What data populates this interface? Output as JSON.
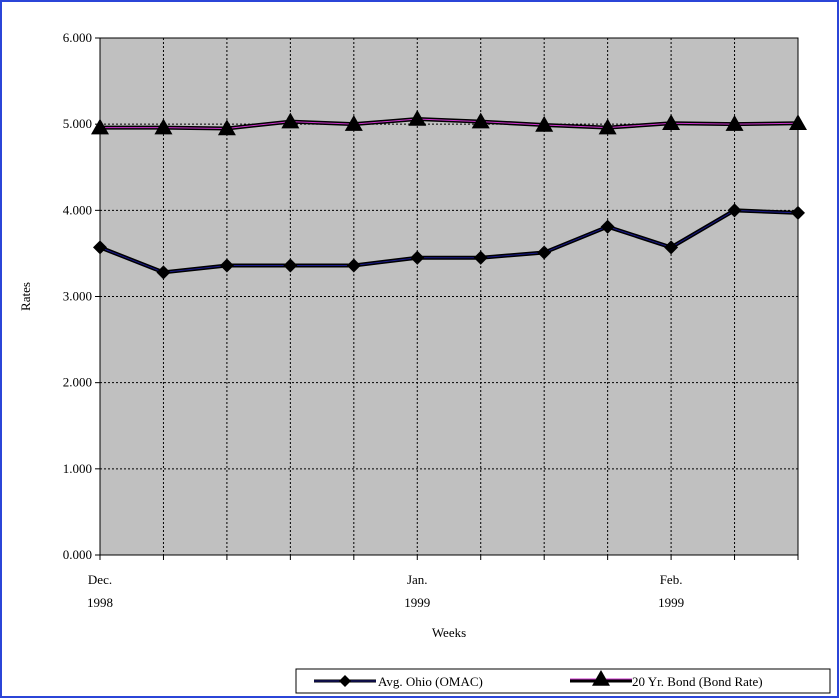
{
  "chart_data": {
    "type": "line",
    "title": "",
    "xlabel": "Weeks",
    "ylabel": "Rates",
    "ylim": [
      0,
      6
    ],
    "yticks": [
      "0.000",
      "1.000",
      "2.000",
      "3.000",
      "4.000",
      "5.000",
      "6.000"
    ],
    "grid": true,
    "legend": "bottom-right",
    "x_tick_labels": [
      {
        "index": 0,
        "line1": "Dec.",
        "line2": "1998"
      },
      {
        "index": 5,
        "line1": "Jan.",
        "line2": "1999"
      },
      {
        "index": 9,
        "line1": "Feb.",
        "line2": "1999"
      }
    ],
    "series": [
      {
        "name": "Avg. Ohio (OMAC)",
        "marker": "diamond",
        "line_color": "#1a1a8c",
        "values": [
          3.57,
          3.28,
          3.36,
          3.36,
          3.36,
          3.45,
          3.45,
          3.51,
          3.81,
          3.57,
          4.0,
          3.97
        ]
      },
      {
        "name": "20 Yr. Bond (Bond Rate)",
        "marker": "triangle",
        "line_color": "#cc33cc",
        "values": [
          4.96,
          4.96,
          4.95,
          5.03,
          5.0,
          5.06,
          5.03,
          4.99,
          4.96,
          5.01,
          5.0,
          5.01
        ]
      }
    ]
  },
  "colors": {
    "plot_background": "#c0c0c0",
    "page_background": "#cdd6f7",
    "frame_border": "#2b45d8"
  }
}
